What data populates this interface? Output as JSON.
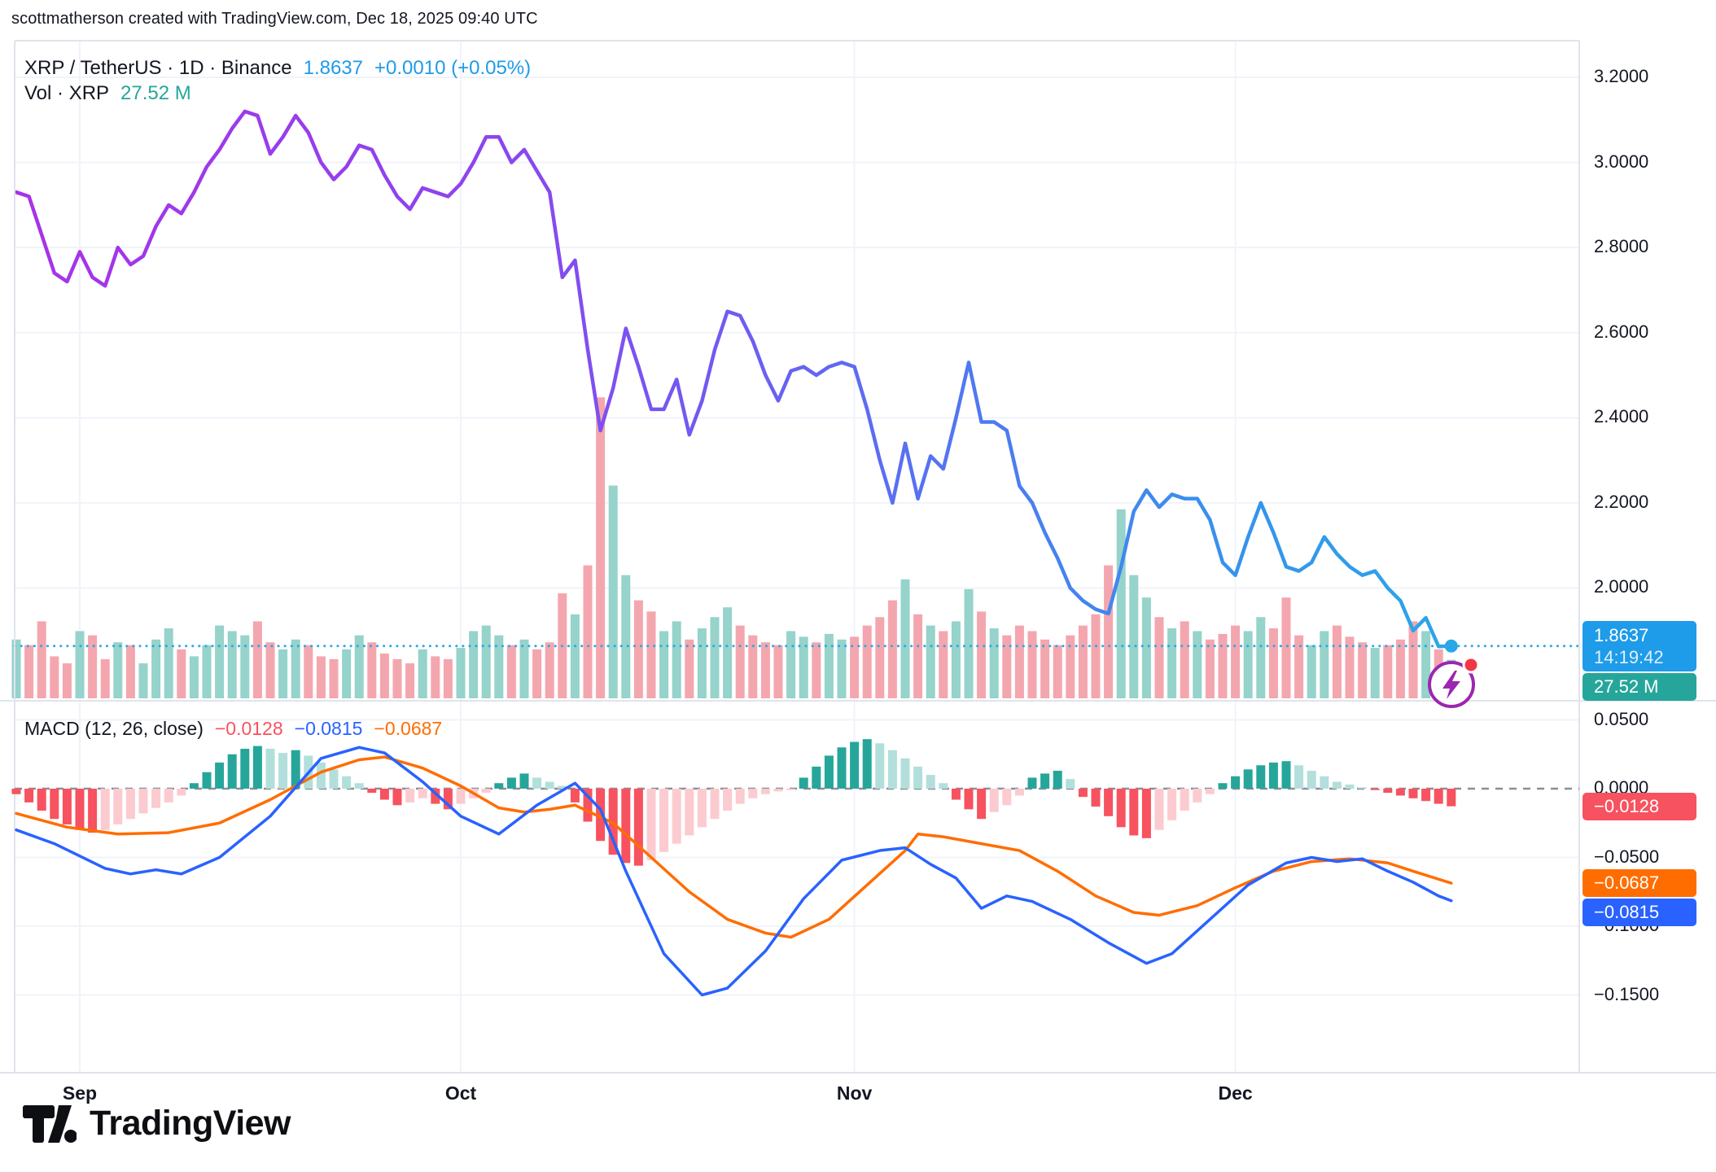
{
  "attribution": "scottmatherson created with TradingView.com, Dec 18, 2025 09:40 UTC",
  "legend": {
    "symbol": "XRP / TetherUS · 1D · Binance",
    "price": "1.8637",
    "change": "+0.0010 (+0.05%)",
    "volume_label": "Vol · XRP",
    "volume_value": "27.52 M"
  },
  "macd_legend": {
    "title": "MACD (12, 26, close)",
    "hist_value": "−0.0128",
    "macd_value": "−0.0815",
    "signal_value": "−0.0687"
  },
  "badges": {
    "price": {
      "text": "1.8637",
      "time": "14:19:42",
      "value": 1.8637,
      "color": "#1E9BE9"
    },
    "volume": {
      "text": "27.52 M",
      "color": "#26A69A"
    },
    "macd_hist": {
      "text": "−0.0128",
      "value": -0.0128,
      "color": "#F7525F"
    },
    "macd_signal": {
      "text": "−0.0687",
      "value": -0.0687,
      "color": "#FF6D00"
    },
    "macd_line": {
      "text": "−0.0815",
      "value": -0.0815,
      "color": "#2962FF"
    }
  },
  "axes": {
    "price_labels": [
      {
        "text": "3.2000",
        "value": 3.2
      },
      {
        "text": "3.0000",
        "value": 3.0
      },
      {
        "text": "2.8000",
        "value": 2.8
      },
      {
        "text": "2.6000",
        "value": 2.6
      },
      {
        "text": "2.4000",
        "value": 2.4
      },
      {
        "text": "2.2000",
        "value": 2.2
      },
      {
        "text": "2.0000",
        "value": 2.0
      }
    ],
    "macd_labels": [
      {
        "text": "0.0500",
        "value": 0.05
      },
      {
        "text": "0.0000",
        "value": 0.0
      },
      {
        "text": "−0.0500",
        "value": -0.05
      },
      {
        "text": "−0.1000",
        "value": -0.1
      },
      {
        "text": "−0.1500",
        "value": -0.15
      }
    ]
  },
  "logo": {
    "brand": "TradingView"
  },
  "colors": {
    "text": "#131722",
    "grid": "#F0F3FA",
    "border": "#E0E3EB",
    "accent_blue": "#2AA7E8",
    "purple": "#A832E8",
    "macd_line": "#2962FF",
    "macd_signal": "#FF6D00",
    "hist_pos": "#26A69A",
    "hist_pos_weak": "#B2DFDB",
    "hist_neg": "#F7525F",
    "hist_neg_weak": "#FBCBD0",
    "vol_up": "#95D3CB",
    "vol_down": "#F4A6AE",
    "zero_line": "#8A8E98",
    "dot": "#2AA7E8",
    "boost_purple": "#9C27B0",
    "boost_red": "#F23645"
  },
  "chart_data": {
    "type": "line",
    "symbol": "XRP / TetherUS",
    "interval": "1D",
    "exchange": "Binance",
    "title": "XRP / TetherUS · 1D · Binance",
    "n_points": 114,
    "month_ticks": [
      {
        "label": "Sep",
        "index": 5
      },
      {
        "label": "Oct",
        "index": 35
      },
      {
        "label": "Nov",
        "index": 66
      },
      {
        "label": "Dec",
        "index": 96
      }
    ],
    "price": {
      "last": 1.8637,
      "change": 0.001,
      "change_pct": 0.05,
      "ylim": [
        1.75,
        3.3
      ],
      "series": [
        2.93,
        2.92,
        2.83,
        2.74,
        2.72,
        2.79,
        2.73,
        2.71,
        2.8,
        2.76,
        2.78,
        2.85,
        2.9,
        2.88,
        2.93,
        2.99,
        3.03,
        3.08,
        3.12,
        3.11,
        3.02,
        3.06,
        3.11,
        3.07,
        3.0,
        2.96,
        2.99,
        3.04,
        3.03,
        2.97,
        2.92,
        2.89,
        2.94,
        2.93,
        2.92,
        2.95,
        3.0,
        3.06,
        3.06,
        3.0,
        3.03,
        2.98,
        2.93,
        2.73,
        2.77,
        2.56,
        2.37,
        2.47,
        2.61,
        2.52,
        2.42,
        2.42,
        2.49,
        2.36,
        2.44,
        2.56,
        2.65,
        2.64,
        2.58,
        2.5,
        2.44,
        2.51,
        2.52,
        2.5,
        2.52,
        2.53,
        2.52,
        2.42,
        2.3,
        2.2,
        2.34,
        2.21,
        2.31,
        2.28,
        2.4,
        2.53,
        2.39,
        2.39,
        2.37,
        2.24,
        2.2,
        2.13,
        2.07,
        2.0,
        1.97,
        1.95,
        1.94,
        2.05,
        2.18,
        2.23,
        2.19,
        2.22,
        2.21,
        2.21,
        2.16,
        2.06,
        2.03,
        2.12,
        2.2,
        2.13,
        2.05,
        2.04,
        2.06,
        2.12,
        2.08,
        2.05,
        2.03,
        2.04,
        2.0,
        1.97,
        1.9,
        1.93,
        1.8627,
        1.8637
      ]
    },
    "volume": {
      "current": 27.52,
      "unit": "M",
      "series_millions": [
        42,
        38,
        55,
        30,
        25,
        48,
        45,
        28,
        40,
        38,
        25,
        42,
        50,
        35,
        30,
        38,
        52,
        48,
        45,
        55,
        40,
        35,
        42,
        38,
        30,
        28,
        35,
        45,
        40,
        32,
        28,
        25,
        35,
        30,
        28,
        36,
        48,
        52,
        45,
        38,
        42,
        35,
        40,
        75,
        60,
        95,
        215,
        152,
        88,
        70,
        62,
        48,
        55,
        42,
        50,
        58,
        65,
        52,
        45,
        40,
        38,
        48,
        44,
        40,
        46,
        42,
        44,
        52,
        58,
        70,
        85,
        60,
        52,
        48,
        55,
        78,
        62,
        50,
        45,
        52,
        48,
        42,
        38,
        45,
        52,
        60,
        95,
        135,
        88,
        72,
        58,
        50,
        55,
        48,
        42,
        46,
        52,
        48,
        58,
        50,
        72,
        45,
        38,
        48,
        52,
        44,
        40,
        36,
        38,
        42,
        55,
        48,
        35,
        27.52
      ]
    },
    "macd": {
      "params": "12, 26, close",
      "last_hist": -0.0128,
      "last_macd": -0.0815,
      "last_signal": -0.0687,
      "ylim": [
        -0.17,
        0.06
      ],
      "histogram": [
        -0.004,
        -0.01,
        -0.016,
        -0.022,
        -0.026,
        -0.03,
        -0.032,
        -0.03,
        -0.026,
        -0.022,
        -0.018,
        -0.014,
        -0.01,
        -0.005,
        0.004,
        0.012,
        0.019,
        0.025,
        0.029,
        0.031,
        0.029,
        0.026,
        0.028,
        0.024,
        0.019,
        0.014,
        0.009,
        0.004,
        -0.003,
        -0.008,
        -0.012,
        -0.01,
        -0.007,
        -0.011,
        -0.015,
        -0.011,
        -0.007,
        -0.003,
        0.004,
        0.008,
        0.011,
        0.008,
        0.005,
        0.002,
        -0.01,
        -0.024,
        -0.038,
        -0.048,
        -0.054,
        -0.056,
        -0.052,
        -0.046,
        -0.04,
        -0.034,
        -0.028,
        -0.022,
        -0.016,
        -0.011,
        -0.007,
        -0.004,
        -0.002,
        -0.001,
        0.008,
        0.016,
        0.024,
        0.03,
        0.034,
        0.036,
        0.033,
        0.028,
        0.022,
        0.016,
        0.01,
        0.004,
        -0.008,
        -0.015,
        -0.022,
        -0.017,
        -0.012,
        -0.005,
        0.008,
        0.011,
        0.013,
        0.007,
        -0.006,
        -0.013,
        -0.02,
        -0.028,
        -0.034,
        -0.036,
        -0.03,
        -0.023,
        -0.016,
        -0.01,
        -0.004,
        0.004,
        0.009,
        0.014,
        0.017,
        0.019,
        0.02,
        0.017,
        0.013,
        0.009,
        0.005,
        0.003,
        0.001,
        -0.001,
        -0.003,
        -0.005,
        -0.007,
        -0.009,
        -0.011,
        -0.0128
      ],
      "macd_keypoints": [
        [
          0,
          -0.03
        ],
        [
          3,
          -0.04
        ],
        [
          7,
          -0.058
        ],
        [
          9,
          -0.062
        ],
        [
          11,
          -0.059
        ],
        [
          13,
          -0.062
        ],
        [
          16,
          -0.05
        ],
        [
          20,
          -0.02
        ],
        [
          24,
          0.022
        ],
        [
          27,
          0.03
        ],
        [
          29,
          0.026
        ],
        [
          32,
          0.005
        ],
        [
          35,
          -0.02
        ],
        [
          38,
          -0.033
        ],
        [
          41,
          -0.012
        ],
        [
          44,
          0.004
        ],
        [
          46,
          -0.015
        ],
        [
          48,
          -0.06
        ],
        [
          51,
          -0.12
        ],
        [
          54,
          -0.15
        ],
        [
          56,
          -0.145
        ],
        [
          59,
          -0.118
        ],
        [
          62,
          -0.08
        ],
        [
          65,
          -0.052
        ],
        [
          68,
          -0.045
        ],
        [
          70,
          -0.043
        ],
        [
          72,
          -0.055
        ],
        [
          74,
          -0.065
        ],
        [
          76,
          -0.087
        ],
        [
          78,
          -0.078
        ],
        [
          80,
          -0.082
        ],
        [
          83,
          -0.095
        ],
        [
          86,
          -0.112
        ],
        [
          89,
          -0.127
        ],
        [
          91,
          -0.12
        ],
        [
          94,
          -0.095
        ],
        [
          97,
          -0.07
        ],
        [
          100,
          -0.054
        ],
        [
          102,
          -0.05
        ],
        [
          104,
          -0.053
        ],
        [
          106,
          -0.051
        ],
        [
          108,
          -0.06
        ],
        [
          110,
          -0.068
        ],
        [
          112,
          -0.078
        ],
        [
          113,
          -0.0815
        ]
      ],
      "signal_keypoints": [
        [
          0,
          -0.018
        ],
        [
          4,
          -0.028
        ],
        [
          8,
          -0.033
        ],
        [
          12,
          -0.032
        ],
        [
          16,
          -0.025
        ],
        [
          20,
          -0.008
        ],
        [
          24,
          0.012
        ],
        [
          27,
          0.021
        ],
        [
          29,
          0.023
        ],
        [
          32,
          0.015
        ],
        [
          35,
          0.002
        ],
        [
          38,
          -0.014
        ],
        [
          40,
          -0.017
        ],
        [
          42,
          -0.015
        ],
        [
          44,
          -0.012
        ],
        [
          47,
          -0.025
        ],
        [
          50,
          -0.05
        ],
        [
          53,
          -0.075
        ],
        [
          56,
          -0.095
        ],
        [
          59,
          -0.105
        ],
        [
          61,
          -0.108
        ],
        [
          64,
          -0.095
        ],
        [
          67,
          -0.07
        ],
        [
          70,
          -0.045
        ],
        [
          71,
          -0.033
        ],
        [
          73,
          -0.035
        ],
        [
          76,
          -0.04
        ],
        [
          79,
          -0.045
        ],
        [
          82,
          -0.06
        ],
        [
          85,
          -0.078
        ],
        [
          88,
          -0.09
        ],
        [
          90,
          -0.092
        ],
        [
          93,
          -0.085
        ],
        [
          96,
          -0.072
        ],
        [
          99,
          -0.06
        ],
        [
          102,
          -0.053
        ],
        [
          105,
          -0.051
        ],
        [
          108,
          -0.054
        ],
        [
          110,
          -0.06
        ],
        [
          113,
          -0.0687
        ]
      ]
    }
  }
}
